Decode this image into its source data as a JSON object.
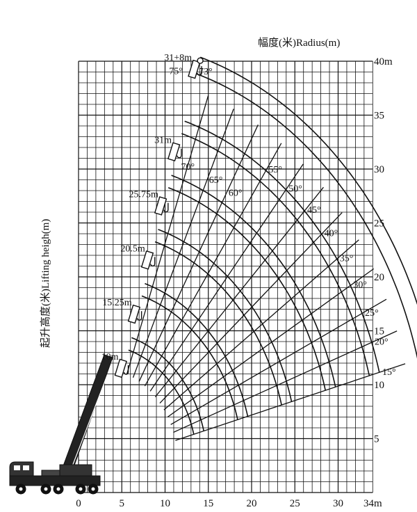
{
  "titles": {
    "radius": "幅度(米)Radius(m)",
    "height": "起升高度(米)Lifting heigh(m)"
  },
  "axes": {
    "x_ticks": [
      "0",
      "5",
      "10",
      "15",
      "20",
      "25",
      "30",
      "34m"
    ],
    "x_tick_values": [
      0,
      5,
      10,
      15,
      20,
      25,
      30,
      34
    ],
    "y_ticks": [
      "5",
      "10",
      "15",
      "20",
      "25",
      "30",
      "35",
      "40m"
    ],
    "y_tick_values": [
      5,
      10,
      15,
      20,
      25,
      30,
      35,
      40
    ],
    "x_range": [
      0,
      34
    ],
    "y_range": [
      0,
      40
    ]
  },
  "boom_lengths": [
    {
      "label": "10m",
      "length": 10
    },
    {
      "label": "15.25m",
      "length": 15.25
    },
    {
      "label": "20.5m",
      "length": 20.5
    },
    {
      "label": "25.75m",
      "length": 25.75
    },
    {
      "label": "31m",
      "length": 31
    },
    {
      "label": "31+8m",
      "length": 39
    }
  ],
  "boom_angles": [
    {
      "label": "15°",
      "angle": 15
    },
    {
      "label": "20°",
      "angle": 20
    },
    {
      "label": "25°",
      "angle": 25
    },
    {
      "label": "30°",
      "angle": 30
    },
    {
      "label": "35°",
      "angle": 35
    },
    {
      "label": "40°",
      "angle": 40
    },
    {
      "label": "45°",
      "angle": 45
    },
    {
      "label": "50°",
      "angle": 50
    },
    {
      "label": "55°",
      "angle": 55
    },
    {
      "label": "60°",
      "angle": 60
    },
    {
      "label": "65°",
      "angle": 65
    },
    {
      "label": "70°",
      "angle": 70
    },
    {
      "label": "73°",
      "angle": 73
    },
    {
      "label": "75°",
      "angle": 75
    }
  ],
  "colors": {
    "line": "#111111",
    "background": "#ffffff"
  }
}
